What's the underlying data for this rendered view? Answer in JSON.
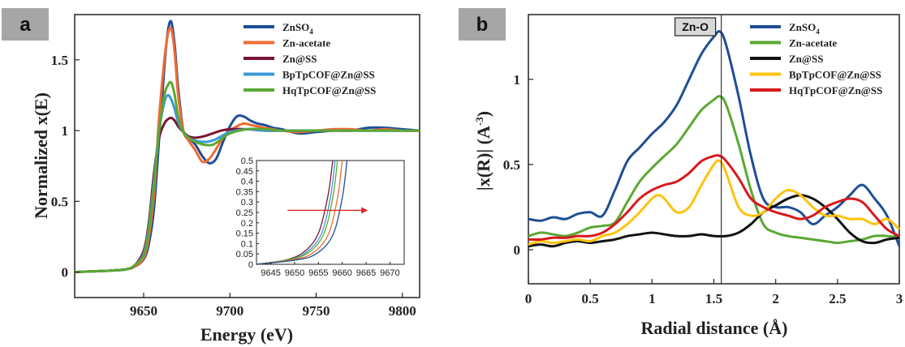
{
  "chart_data": [
    {
      "panel": "a",
      "type": "line",
      "xlabel": "Energy (eV)",
      "ylabel": "Normalized x(E)",
      "xlim": [
        9610,
        9810
      ],
      "ylim": [
        -0.18,
        1.82
      ],
      "xticks": [
        9650,
        9700,
        9750,
        9800
      ],
      "yticks": [
        0,
        0.5,
        1,
        1.5
      ],
      "legend_position": "top-right",
      "series": [
        {
          "name": "ZnSO4",
          "name_main": "ZnSO",
          "name_sub": "4",
          "color": "#1f4e96",
          "x": [
            9610,
            9630,
            9640,
            9645,
            9650,
            9653,
            9656,
            9659,
            9662,
            9664,
            9666,
            9668,
            9670,
            9673,
            9676,
            9680,
            9684,
            9688,
            9692,
            9696,
            9700,
            9704,
            9708,
            9712,
            9716,
            9720,
            9725,
            9730,
            9740,
            9750,
            9760,
            9770,
            9780,
            9790,
            9800,
            9810
          ],
          "y": [
            0,
            0.01,
            0.02,
            0.04,
            0.09,
            0.2,
            0.45,
            0.95,
            1.45,
            1.7,
            1.77,
            1.6,
            1.3,
            1.0,
            0.95,
            0.9,
            0.82,
            0.77,
            0.8,
            0.92,
            1.03,
            1.1,
            1.1,
            1.07,
            1.05,
            1.04,
            1.02,
            1.01,
            0.98,
            0.99,
            1.0,
            1.0,
            1.02,
            1.02,
            1.01,
            1.0
          ]
        },
        {
          "name": "Zn-acetate",
          "color": "#f26a32",
          "x": [
            9610,
            9630,
            9640,
            9645,
            9650,
            9653,
            9656,
            9659,
            9662,
            9664,
            9666,
            9668,
            9670,
            9673,
            9676,
            9680,
            9684,
            9688,
            9692,
            9696,
            9700,
            9704,
            9708,
            9712,
            9716,
            9720,
            9730,
            9740,
            9750,
            9760,
            9770,
            9780,
            9790,
            9800,
            9810
          ],
          "y": [
            0,
            0.01,
            0.02,
            0.04,
            0.1,
            0.25,
            0.55,
            1.1,
            1.5,
            1.68,
            1.72,
            1.55,
            1.25,
            1.0,
            0.93,
            0.86,
            0.78,
            0.8,
            0.87,
            0.95,
            1.0,
            1.03,
            1.05,
            1.04,
            1.03,
            1.02,
            1.0,
            0.99,
            1.0,
            1.01,
            1.01,
            1.0,
            1.01,
            1.0,
            1.0
          ]
        },
        {
          "name": "Zn@SS",
          "color": "#7a1434",
          "x": [
            9610,
            9630,
            9640,
            9645,
            9650,
            9653,
            9656,
            9659,
            9662,
            9664,
            9666,
            9668,
            9670,
            9673,
            9676,
            9680,
            9685,
            9690,
            9695,
            9700,
            9710,
            9720,
            9730,
            9740,
            9750,
            9760,
            9770,
            9780,
            9790,
            9800,
            9810
          ],
          "y": [
            0,
            0.01,
            0.02,
            0.05,
            0.15,
            0.35,
            0.7,
            0.95,
            1.05,
            1.08,
            1.09,
            1.07,
            1.03,
            0.99,
            0.96,
            0.95,
            0.96,
            0.98,
            1.0,
            1.01,
            1.01,
            1.0,
            1.0,
            1.0,
            1.0,
            1.0,
            1.0,
            1.0,
            1.0,
            1.0,
            1.0
          ]
        },
        {
          "name": "BpTpCOF@Zn@SS",
          "color": "#3a9ad9",
          "x": [
            9610,
            9630,
            9640,
            9645,
            9650,
            9653,
            9656,
            9659,
            9662,
            9664,
            9666,
            9668,
            9670,
            9673,
            9676,
            9680,
            9685,
            9690,
            9695,
            9700,
            9710,
            9720,
            9730,
            9740,
            9750,
            9760,
            9770,
            9780,
            9790,
            9800,
            9810
          ],
          "y": [
            0,
            0.01,
            0.02,
            0.05,
            0.13,
            0.32,
            0.65,
            1.0,
            1.2,
            1.25,
            1.22,
            1.15,
            1.06,
            0.99,
            0.95,
            0.93,
            0.92,
            0.93,
            0.96,
            0.99,
            1.01,
            1.0,
            1.0,
            1.0,
            1.0,
            1.0,
            1.0,
            1.0,
            1.0,
            1.0,
            1.0
          ]
        },
        {
          "name": "HqTpCOF@Zn@SS",
          "color": "#5aa832",
          "x": [
            9610,
            9630,
            9640,
            9645,
            9650,
            9653,
            9656,
            9659,
            9662,
            9664,
            9666,
            9668,
            9670,
            9673,
            9676,
            9680,
            9685,
            9690,
            9695,
            9700,
            9710,
            9720,
            9730,
            9740,
            9750,
            9760,
            9770,
            9780,
            9790,
            9800,
            9810
          ],
          "y": [
            0,
            0.01,
            0.02,
            0.05,
            0.12,
            0.3,
            0.62,
            1.0,
            1.25,
            1.32,
            1.34,
            1.25,
            1.1,
            0.99,
            0.95,
            0.92,
            0.9,
            0.9,
            0.94,
            0.98,
            1.01,
            1.01,
            1.0,
            1.0,
            1.0,
            1.0,
            1.0,
            1.0,
            1.0,
            1.0,
            1.0
          ]
        }
      ],
      "inset": {
        "xlim": [
          9642,
          9673
        ],
        "ylim": [
          0,
          0.5
        ],
        "xticks": [
          9645,
          9650,
          9655,
          9660,
          9665,
          9670
        ],
        "yticks": [
          0,
          0.05,
          0.1,
          0.15,
          0.2,
          0.25,
          0.3,
          0.35,
          0.4,
          0.45,
          0.5
        ],
        "ytick_labels": [
          "0",
          "0.05",
          "0.1",
          "0.15",
          "0.2",
          "0.25",
          "0.3",
          "0.35",
          "0.4",
          "0.45",
          "0.5"
        ],
        "arrow_color": "#d62728",
        "series": [
          {
            "color": "#7a1434",
            "x": [
              9642,
              9648,
              9652,
              9655,
              9657,
              9658
            ],
            "y": [
              0,
              0.02,
              0.06,
              0.15,
              0.33,
              0.5
            ]
          },
          {
            "color": "#3a9ad9",
            "x": [
              9642,
              9648,
              9652,
              9655.5,
              9657.5,
              9658.5
            ],
            "y": [
              0,
              0.02,
              0.05,
              0.14,
              0.32,
              0.5
            ]
          },
          {
            "color": "#5aa832",
            "x": [
              9642,
              9648,
              9652.5,
              9656,
              9658,
              9659
            ],
            "y": [
              0,
              0.02,
              0.05,
              0.14,
              0.32,
              0.5
            ]
          },
          {
            "color": "#f26a32",
            "x": [
              9642,
              9649,
              9653.5,
              9657,
              9659,
              9660
            ],
            "y": [
              0,
              0.02,
              0.05,
              0.14,
              0.32,
              0.5
            ]
          },
          {
            "color": "#1f4e96",
            "x": [
              9642,
              9650,
              9654.5,
              9658,
              9660,
              9661
            ],
            "y": [
              0,
              0.02,
              0.05,
              0.14,
              0.32,
              0.5
            ]
          }
        ]
      }
    },
    {
      "panel": "b",
      "type": "line",
      "xlabel": "Radial distance (Å)",
      "ylabel": "|x(R)| (Å⁻³)",
      "ylabel_main": "|x(R)| (A",
      "ylabel_sup": "-3",
      "ylabel_end": ")",
      "xlim": [
        0,
        3
      ],
      "ylim": [
        -0.2,
        1.38
      ],
      "xticks": [
        0,
        0.5,
        1,
        1.5,
        2,
        2.5,
        3
      ],
      "xtick_labels": [
        "0",
        "0.5",
        "1",
        "1.5",
        "2",
        "2.5",
        "3"
      ],
      "yticks": [
        0,
        0.5,
        1
      ],
      "ytick_labels": [
        "0",
        "0.5",
        "1"
      ],
      "legend_position": "top-right",
      "annotation": {
        "text": "Zn-O",
        "x": 1.56
      },
      "series": [
        {
          "name": "ZnSO4",
          "name_main": "ZnSO",
          "name_sub": "4",
          "color": "#1f4e96",
          "x": [
            0,
            0.1,
            0.2,
            0.3,
            0.4,
            0.5,
            0.6,
            0.7,
            0.8,
            0.9,
            1.0,
            1.1,
            1.2,
            1.3,
            1.4,
            1.5,
            1.55,
            1.6,
            1.7,
            1.8,
            1.9,
            2.0,
            2.1,
            2.2,
            2.3,
            2.4,
            2.5,
            2.6,
            2.7,
            2.8,
            2.9,
            3.0
          ],
          "y": [
            0.18,
            0.17,
            0.19,
            0.18,
            0.21,
            0.22,
            0.2,
            0.35,
            0.52,
            0.6,
            0.68,
            0.75,
            0.85,
            1.0,
            1.15,
            1.25,
            1.28,
            1.2,
            0.9,
            0.55,
            0.3,
            0.25,
            0.25,
            0.22,
            0.15,
            0.2,
            0.25,
            0.32,
            0.38,
            0.3,
            0.2,
            0.02
          ]
        },
        {
          "name": "Zn-acetate",
          "color": "#5aa832",
          "x": [
            0,
            0.1,
            0.2,
            0.3,
            0.4,
            0.5,
            0.6,
            0.7,
            0.8,
            0.9,
            1.0,
            1.1,
            1.2,
            1.3,
            1.4,
            1.5,
            1.55,
            1.6,
            1.7,
            1.8,
            1.9,
            2.0,
            2.1,
            2.2,
            2.3,
            2.4,
            2.5,
            2.6,
            2.7,
            2.8,
            2.9,
            3.0
          ],
          "y": [
            0.08,
            0.1,
            0.09,
            0.08,
            0.1,
            0.13,
            0.14,
            0.16,
            0.28,
            0.4,
            0.48,
            0.55,
            0.62,
            0.72,
            0.82,
            0.88,
            0.9,
            0.85,
            0.62,
            0.35,
            0.15,
            0.1,
            0.08,
            0.07,
            0.06,
            0.05,
            0.04,
            0.05,
            0.06,
            0.08,
            0.08,
            0.07
          ]
        },
        {
          "name": "Zn@SS",
          "color": "#111111",
          "x": [
            0,
            0.1,
            0.2,
            0.3,
            0.4,
            0.5,
            0.6,
            0.7,
            0.8,
            0.9,
            1.0,
            1.1,
            1.2,
            1.3,
            1.4,
            1.5,
            1.6,
            1.7,
            1.8,
            1.9,
            2.0,
            2.1,
            2.2,
            2.3,
            2.4,
            2.5,
            2.6,
            2.7,
            2.8,
            2.9,
            3.0
          ],
          "y": [
            0.02,
            0.03,
            0.02,
            0.04,
            0.05,
            0.04,
            0.05,
            0.06,
            0.08,
            0.09,
            0.1,
            0.09,
            0.08,
            0.08,
            0.09,
            0.08,
            0.08,
            0.1,
            0.15,
            0.22,
            0.26,
            0.3,
            0.32,
            0.3,
            0.25,
            0.18,
            0.1,
            0.05,
            0.04,
            0.06,
            0.07
          ]
        },
        {
          "name": "BpTpCOF@Zn@SS",
          "color": "#ffc20e",
          "x": [
            0,
            0.1,
            0.2,
            0.3,
            0.4,
            0.5,
            0.6,
            0.7,
            0.8,
            0.9,
            1.0,
            1.05,
            1.1,
            1.2,
            1.3,
            1.4,
            1.5,
            1.55,
            1.6,
            1.7,
            1.8,
            1.9,
            2.0,
            2.1,
            2.2,
            2.3,
            2.4,
            2.5,
            2.6,
            2.7,
            2.8,
            2.9,
            3.0
          ],
          "y": [
            0.03,
            0.05,
            0.04,
            0.05,
            0.06,
            0.05,
            0.08,
            0.1,
            0.15,
            0.22,
            0.3,
            0.32,
            0.3,
            0.22,
            0.25,
            0.38,
            0.5,
            0.52,
            0.45,
            0.25,
            0.2,
            0.22,
            0.3,
            0.35,
            0.32,
            0.25,
            0.2,
            0.2,
            0.18,
            0.18,
            0.15,
            0.18,
            0.12
          ]
        },
        {
          "name": "HqTpCOF@Zn@SS",
          "color": "#d7191c",
          "x": [
            0,
            0.1,
            0.2,
            0.3,
            0.4,
            0.5,
            0.6,
            0.7,
            0.8,
            0.9,
            1.0,
            1.1,
            1.2,
            1.3,
            1.4,
            1.5,
            1.55,
            1.6,
            1.7,
            1.8,
            1.9,
            2.0,
            2.1,
            2.2,
            2.3,
            2.4,
            2.5,
            2.6,
            2.7,
            2.8,
            2.9,
            3.0
          ],
          "y": [
            0.06,
            0.06,
            0.07,
            0.07,
            0.08,
            0.08,
            0.1,
            0.15,
            0.22,
            0.3,
            0.35,
            0.38,
            0.4,
            0.45,
            0.52,
            0.55,
            0.55,
            0.52,
            0.42,
            0.3,
            0.25,
            0.22,
            0.2,
            0.18,
            0.2,
            0.25,
            0.28,
            0.3,
            0.28,
            0.2,
            0.12,
            0.08
          ]
        }
      ]
    }
  ]
}
